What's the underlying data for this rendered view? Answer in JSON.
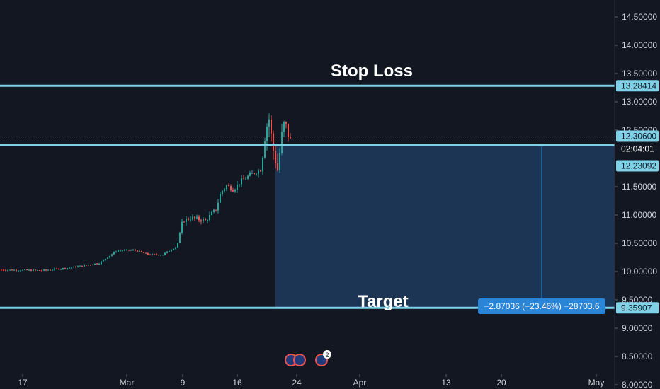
{
  "chart_data": {
    "type": "candlestick",
    "x_tick_labels": [
      "17",
      "Mar",
      "9",
      "16",
      "24",
      "Apr",
      "13",
      "20",
      "May"
    ],
    "y_tick_labels": [
      "14.50000",
      "14.00000",
      "13.50000",
      "13.00000",
      "12.50000",
      "11.50000",
      "11.00000",
      "10.50000",
      "10.00000",
      "9.50000",
      "9.00000",
      "8.50000",
      "8.00000"
    ],
    "ylim": [
      7.95,
      14.8
    ],
    "price_tags": {
      "stop_loss": "13.28414",
      "current": "12.30600",
      "countdown": "02:04:01",
      "entry": "12.23092",
      "target": "9.35907"
    },
    "levels": {
      "stop_loss": 13.28414,
      "current": 12.306,
      "entry": 12.23092,
      "target": 9.35907
    },
    "annotations": {
      "stop_loss": "Stop Loss",
      "target": "Target"
    },
    "measure": "−2.87036 (−23.46%) −28703.6",
    "event_badge_count": "2",
    "colors": {
      "background": "#131722",
      "up": "#26a69a",
      "down": "#ef5350",
      "level_line": "#7fd1e8",
      "short_zone": "#1c3555",
      "measure_box": "#2a85d6",
      "text": "#d1d4dc"
    },
    "grid": false
  }
}
